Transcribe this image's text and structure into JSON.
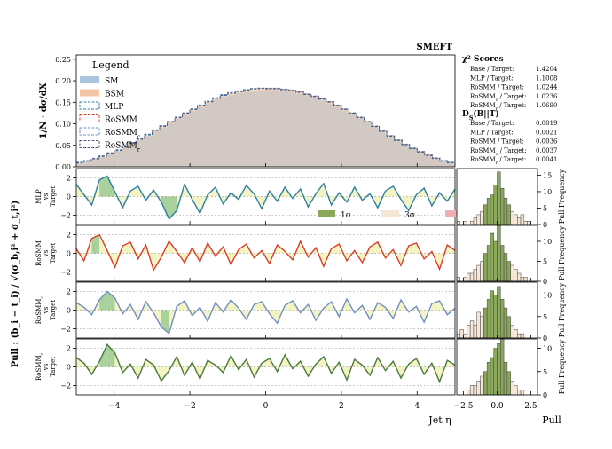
{
  "colors": {
    "sm": "#a9c4dc",
    "bsm": "#f3c6a5",
    "mlp": "#2a7fa6",
    "rosmm": "#d7402b",
    "rosmm_c": "#6f8fc7",
    "rosmm_r": "#4a7a3a",
    "band1": "#8aa85a",
    "band3": "#f6e6d6",
    "band5": "#ecb0b0",
    "fill_green": "#8cc27a",
    "fill_yellow": "#f0efb0"
  },
  "chart_data": [
    {
      "type": "line",
      "role": "main-distribution",
      "title": "SMEFT",
      "xlabel": "",
      "ylabel": "1/N · dσ/dX",
      "xlim": [
        -5,
        5
      ],
      "ylim": [
        0,
        0.26
      ],
      "yticks": [
        "0.00",
        "0.05",
        "0.10",
        "0.15",
        "0.20",
        "0.25"
      ],
      "legend": {
        "title": "Legend",
        "location": "top-left",
        "entries": [
          "SM",
          "BSM",
          "MLP",
          "RoSMM",
          "RoSMM",
          "RoSMM"
        ],
        "subscripts": [
          "",
          "",
          "",
          "",
          "c",
          "r"
        ]
      },
      "x": [
        -5.0,
        -4.8,
        -4.6,
        -4.4,
        -4.2,
        -4.0,
        -3.8,
        -3.6,
        -3.4,
        -3.2,
        -3.0,
        -2.8,
        -2.6,
        -2.4,
        -2.2,
        -2.0,
        -1.8,
        -1.6,
        -1.4,
        -1.2,
        -1.0,
        -0.8,
        -0.6,
        -0.4,
        -0.2,
        0.0,
        0.2,
        0.4,
        0.6,
        0.8,
        1.0,
        1.2,
        1.4,
        1.6,
        1.8,
        2.0,
        2.2,
        2.4,
        2.6,
        2.8,
        3.0,
        3.2,
        3.4,
        3.6,
        3.8,
        4.0,
        4.2,
        4.4,
        4.6,
        4.8
      ],
      "series": [
        {
          "name": "SM",
          "values": [
            0.008,
            0.012,
            0.017,
            0.023,
            0.03,
            0.037,
            0.045,
            0.054,
            0.063,
            0.073,
            0.083,
            0.093,
            0.103,
            0.113,
            0.123,
            0.132,
            0.141,
            0.15,
            0.158,
            0.165,
            0.17,
            0.174,
            0.177,
            0.179,
            0.18,
            0.18,
            0.18,
            0.178,
            0.176,
            0.172,
            0.167,
            0.162,
            0.156,
            0.149,
            0.141,
            0.132,
            0.123,
            0.113,
            0.103,
            0.092,
            0.081,
            0.07,
            0.06,
            0.05,
            0.041,
            0.033,
            0.025,
            0.018,
            0.012,
            0.008
          ]
        },
        {
          "name": "MLP",
          "values": [
            0.009,
            0.013,
            0.018,
            0.024,
            0.031,
            0.038,
            0.046,
            0.055,
            0.064,
            0.074,
            0.084,
            0.094,
            0.104,
            0.114,
            0.124,
            0.133,
            0.142,
            0.151,
            0.159,
            0.166,
            0.171,
            0.175,
            0.178,
            0.181,
            0.182,
            0.181,
            0.181,
            0.179,
            0.177,
            0.173,
            0.168,
            0.163,
            0.157,
            0.15,
            0.142,
            0.133,
            0.124,
            0.114,
            0.104,
            0.093,
            0.082,
            0.071,
            0.061,
            0.051,
            0.042,
            0.034,
            0.026,
            0.019,
            0.013,
            0.009
          ]
        }
      ]
    },
    {
      "type": "line",
      "role": "pull-panels",
      "ylabel": "Pull : (b_i − t_i) / √(σ_b,i² + σ_t,i²)",
      "xlabel": "Jet η",
      "xticks": [
        "−4",
        "−2",
        "0",
        "2",
        "4"
      ],
      "yticks": [
        "−2",
        "0",
        "2"
      ],
      "xlim": [
        -5,
        5
      ],
      "ylim": [
        -3,
        3
      ],
      "sigma_legend": [
        "1σ",
        "3σ",
        "5σ"
      ],
      "x": [
        -5.0,
        -4.8,
        -4.6,
        -4.4,
        -4.2,
        -4.0,
        -3.8,
        -3.6,
        -3.4,
        -3.2,
        -3.0,
        -2.8,
        -2.6,
        -2.4,
        -2.2,
        -2.0,
        -1.8,
        -1.6,
        -1.4,
        -1.2,
        -1.0,
        -0.8,
        -0.6,
        -0.4,
        -0.2,
        0.0,
        0.2,
        0.4,
        0.6,
        0.8,
        1.0,
        1.2,
        1.4,
        1.6,
        1.8,
        2.0,
        2.2,
        2.4,
        2.6,
        2.8,
        3.0,
        3.2,
        3.4,
        3.6,
        3.8,
        4.0,
        4.2,
        4.4,
        4.6,
        4.8
      ],
      "series": [
        {
          "name": "MLP",
          "label_lines": [
            "MLP",
            "vs",
            "Target"
          ],
          "values": [
            1.3,
            0.2,
            -0.9,
            1.8,
            2.2,
            0.5,
            -1.2,
            0.6,
            1.1,
            -0.4,
            0.7,
            -0.6,
            -2.4,
            -1.5,
            1.3,
            -0.3,
            -1.8,
            0.2,
            1.0,
            -0.8,
            0.4,
            -0.3,
            1.2,
            0.3,
            -1.3,
            0.6,
            -0.5,
            1.0,
            -0.2,
            0.8,
            -1.1,
            0.3,
            1.4,
            -0.9,
            0.4,
            -0.6,
            1.0,
            -0.4,
            0.3,
            -1.2,
            0.6,
            1.1,
            -0.3,
            -1.5,
            0.2,
            0.9,
            -1.0,
            0.4,
            -0.5,
            0.8
          ]
        },
        {
          "name": "RoSMM",
          "label_lines": [
            "RoSMM",
            "vs",
            "Target"
          ],
          "values": [
            0.5,
            -0.8,
            1.6,
            2.0,
            0.3,
            -1.5,
            0.8,
            1.2,
            -0.6,
            0.9,
            -1.8,
            -0.4,
            1.3,
            0.2,
            -1.0,
            0.6,
            -0.9,
            1.1,
            -0.3,
            0.7,
            -1.2,
            0.4,
            1.0,
            -0.5,
            0.3,
            -1.1,
            0.9,
            0.2,
            -0.7,
            1.3,
            -0.4,
            0.6,
            -1.4,
            0.5,
            1.0,
            -0.8,
            0.3,
            -1.0,
            0.7,
            1.2,
            -0.5,
            0.4,
            -1.3,
            0.8,
            1.1,
            -0.6,
            0.2,
            -1.7,
            0.9,
            0.3
          ]
        },
        {
          "name": "RoSMM",
          "sub": "c",
          "label_lines": [
            "RoSMM",
            "vs",
            "Target"
          ],
          "values": [
            0.8,
            0.3,
            -0.5,
            1.1,
            2.0,
            1.3,
            -0.4,
            0.6,
            -1.0,
            0.9,
            -0.3,
            -1.8,
            -2.5,
            0.4,
            1.0,
            -0.6,
            0.3,
            -1.2,
            0.8,
            -0.2,
            1.1,
            0.2,
            -1.0,
            0.6,
            0.9,
            -0.4,
            -1.4,
            0.5,
            1.0,
            -0.3,
            0.6,
            -1.1,
            0.2,
            0.9,
            -0.7,
            1.2,
            -0.3,
            0.5,
            -1.0,
            0.8,
            0.3,
            -0.9,
            1.1,
            -0.2,
            0.4,
            -1.3,
            0.7,
            1.0,
            -0.5,
            0.2
          ]
        },
        {
          "name": "RoSMM",
          "sub": "r",
          "label_lines": [
            "RoSMM",
            "vs",
            "Target"
          ],
          "values": [
            1.0,
            0.4,
            -0.8,
            0.6,
            2.4,
            1.5,
            -0.6,
            0.3,
            -1.2,
            0.8,
            0.2,
            -1.5,
            -0.4,
            1.1,
            -0.9,
            0.5,
            -1.3,
            0.7,
            0.2,
            -0.6,
            1.2,
            -0.3,
            0.8,
            -1.1,
            0.4,
            0.9,
            -0.5,
            1.3,
            -0.2,
            0.6,
            -1.0,
            0.3,
            1.1,
            -0.7,
            0.5,
            -1.4,
            0.8,
            0.2,
            -0.9,
            1.0,
            -0.4,
            0.6,
            -1.2,
            0.3,
            0.9,
            -0.8,
            0.4,
            -1.6,
            0.7,
            0.2
          ]
        }
      ]
    },
    {
      "type": "bar",
      "role": "pull-histograms",
      "xlabel": "Pull",
      "ylabel": "Pull Frequency",
      "xticks": [
        "−2.5",
        "0.0",
        "2.5"
      ],
      "xlim": [
        -3,
        3
      ],
      "bins": [
        -3.0,
        -2.75,
        -2.5,
        -2.25,
        -2.0,
        -1.75,
        -1.5,
        -1.25,
        -1.0,
        -0.75,
        -0.5,
        -0.25,
        0.0,
        0.25,
        0.5,
        0.75,
        1.0,
        1.25,
        1.5,
        1.75,
        2.0,
        2.25,
        2.5,
        2.75
      ],
      "panels": [
        {
          "name": "MLP",
          "yticks": [
            "0",
            "5",
            "10",
            "15"
          ],
          "ymax": 17,
          "counts": [
            1,
            0,
            1,
            0,
            1,
            2,
            3,
            4,
            6,
            8,
            9,
            12,
            16,
            11,
            8,
            6,
            4,
            3,
            2,
            3,
            1,
            1,
            0,
            0
          ]
        },
        {
          "name": "RoSMM",
          "yticks": [
            "0",
            "5",
            "10"
          ],
          "ymax": 14,
          "counts": [
            1,
            0,
            1,
            2,
            2,
            3,
            4,
            5,
            7,
            9,
            12,
            10,
            14,
            9,
            7,
            5,
            4,
            3,
            2,
            1,
            1,
            0,
            0,
            0
          ]
        },
        {
          "name": "RoSMM_c",
          "yticks": [
            "0",
            "5",
            "10"
          ],
          "ymax": 13,
          "counts": [
            1,
            2,
            1,
            3,
            4,
            3,
            6,
            5,
            7,
            9,
            11,
            10,
            12,
            9,
            7,
            5,
            3,
            2,
            1,
            1,
            0,
            0,
            0,
            0
          ]
        },
        {
          "name": "RoSMM_r",
          "yticks": [
            "0",
            "5",
            "10"
          ],
          "ymax": 12,
          "counts": [
            0,
            0,
            0,
            1,
            2,
            2,
            3,
            4,
            5,
            7,
            8,
            10,
            11,
            12,
            7,
            5,
            3,
            2,
            1,
            1,
            0,
            0,
            0,
            0
          ]
        }
      ]
    }
  ],
  "scores": {
    "chi2_title": "χ² Scores",
    "chi2_rows": [
      {
        "label": "Base / Target:",
        "value": "1.4204"
      },
      {
        "label": "MLP / Target:",
        "value": "1.1008"
      },
      {
        "label": "RoSMM / Target:",
        "value": "1.0244"
      },
      {
        "label": "RoSMM",
        "sub": "c",
        "suffix": " / Target:",
        "value": "1.0236"
      },
      {
        "label": "RoSMM",
        "sub": "r",
        "suffix": " / Target:",
        "value": "1.0690"
      }
    ],
    "ds_title": "D",
    "ds_title_sub": "S",
    "ds_title_rest": "(B||T)",
    "ds_rows": [
      {
        "label": "Base / Target:",
        "value": "0.0019"
      },
      {
        "label": "MLP / Target:",
        "value": "0.0021"
      },
      {
        "label": "RoSMM / Target:",
        "value": "0.0036"
      },
      {
        "label": "RoSMM",
        "sub": "c",
        "suffix": " / Target:",
        "value": "0.0037"
      },
      {
        "label": "RoSMM",
        "sub": "r",
        "suffix": " / Target:",
        "value": "0.0041"
      }
    ]
  }
}
